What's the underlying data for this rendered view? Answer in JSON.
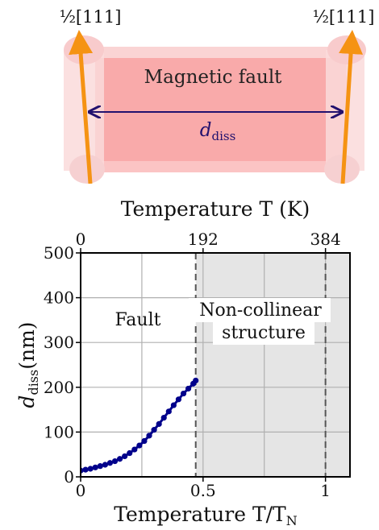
{
  "schematic": {
    "label_left": "½[111]",
    "label_right": "½[111]",
    "fault_label": "Magnetic fault",
    "distance_label": "d",
    "distance_label_sub": "diss",
    "colors": {
      "fault_fill": "#f9a3a3",
      "cylinder_fill": "#fadadb",
      "dislocation": "#f59313",
      "arrow": "#22116e",
      "distance_text": "#22116e"
    }
  },
  "chart_data": {
    "type": "line",
    "xlabel": "Temperature T/T",
    "xlabel_sub": "N",
    "ylabel": "d",
    "ylabel_sub": "diss",
    "ylabel_unit": "(nm)",
    "top_xlabel": "Temperature T (K)",
    "xlim": [
      0,
      1.1
    ],
    "ylim": [
      0,
      500
    ],
    "x_ticks": [
      0,
      0.5,
      1
    ],
    "x_tick_labels": [
      "0",
      "0.5",
      "1"
    ],
    "y_ticks": [
      0,
      100,
      200,
      300,
      400,
      500
    ],
    "y_tick_labels": [
      "0",
      "100",
      "200",
      "300",
      "400",
      "500"
    ],
    "top_ticks": [
      0,
      0.5,
      1
    ],
    "top_tick_labels": [
      "0",
      "192",
      "384"
    ],
    "grid": true,
    "shaded_region": {
      "x_start": 0.47,
      "x_end": 1.1,
      "color": "#e5e5e5"
    },
    "vlines": [
      0.47,
      1.0
    ],
    "annotations": {
      "fault": "Fault",
      "noncollinear_line1": "Non-collinear",
      "noncollinear_line2": "structure"
    },
    "series": [
      {
        "color": "#00008b",
        "x": [
          0.0,
          0.02,
          0.04,
          0.06,
          0.08,
          0.1,
          0.12,
          0.14,
          0.16,
          0.18,
          0.2,
          0.22,
          0.24,
          0.26,
          0.28,
          0.3,
          0.32,
          0.34,
          0.36,
          0.38,
          0.4,
          0.42,
          0.44,
          0.46,
          0.47
        ],
        "y": [
          14,
          16,
          18,
          21,
          24,
          27,
          31,
          35,
          40,
          46,
          53,
          61,
          70,
          80,
          92,
          105,
          118,
          132,
          146,
          160,
          173,
          186,
          197,
          208,
          215
        ]
      }
    ]
  }
}
